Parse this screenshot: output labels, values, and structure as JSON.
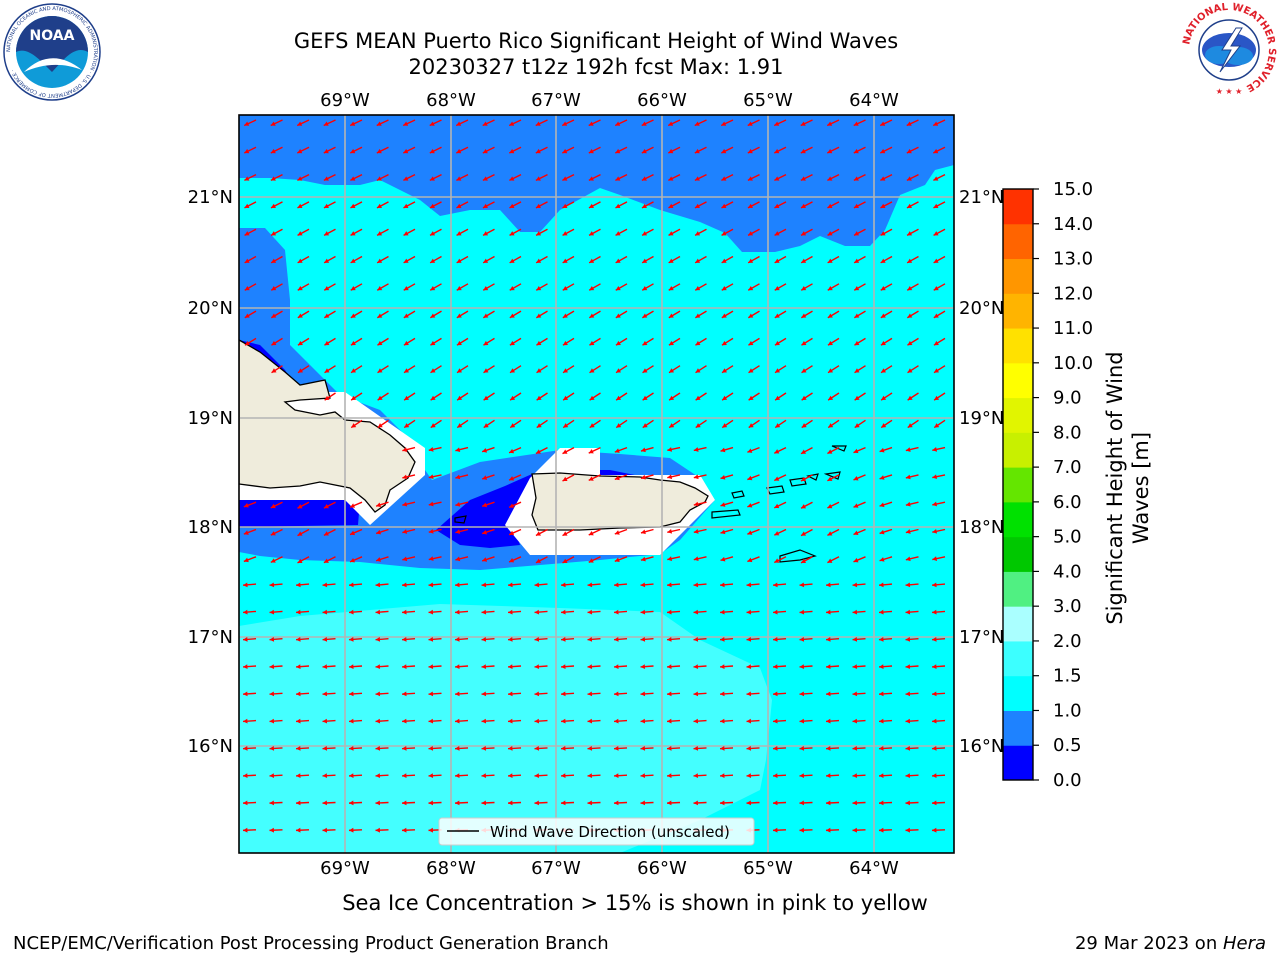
{
  "title": {
    "line1": "GEFS MEAN Puerto Rico Significant Height of Wind Waves",
    "line2": "20230327 t12z 192h fcst   Max: 1.91"
  },
  "map": {
    "lon_labels": [
      "69°W",
      "68°W",
      "67°W",
      "66°W",
      "65°W",
      "64°W"
    ],
    "lat_labels": [
      "21°N",
      "20°N",
      "19°N",
      "18°N",
      "17°N",
      "16°N"
    ],
    "legend": "Wind Wave Direction (unscaled)",
    "arrow_color": "#ff0000",
    "land_color": "#efecdc"
  },
  "colorbar": {
    "label": "Significant Height of Wind Waves [m]",
    "ticks": [
      "0.0",
      "0.5",
      "1.0",
      "1.5",
      "2.0",
      "3.0",
      "4.0",
      "5.0",
      "6.0",
      "7.0",
      "8.0",
      "9.0",
      "10.0",
      "11.0",
      "12.0",
      "13.0",
      "14.0",
      "15.0"
    ],
    "colors": [
      "#0000ff",
      "#1e82ff",
      "#00ffff",
      "#3cffff",
      "#aaffff",
      "#50f082",
      "#00c800",
      "#00e100",
      "#64e600",
      "#c8f000",
      "#e1f500",
      "#ffff00",
      "#ffe100",
      "#ffb400",
      "#ff9600",
      "#ff6400",
      "#ff3200",
      "#ff0000"
    ]
  },
  "caption": "Sea Ice Concentration > 15% is shown in pink to yellow",
  "footer": {
    "left": "NCEP/EMC/Verification Post Processing Product Generation Branch",
    "right_prefix": "29 Mar 2023 on ",
    "right_host": "Hera"
  },
  "logos": {
    "noaa": "NOAA",
    "noaa_ring": "NATIONAL OCEANIC AND ATMOSPHERIC ADMINISTRATION · U.S. DEPARTMENT OF COMMERCE ·",
    "nws_ring": "NATIONAL WEATHER SERVICE"
  }
}
